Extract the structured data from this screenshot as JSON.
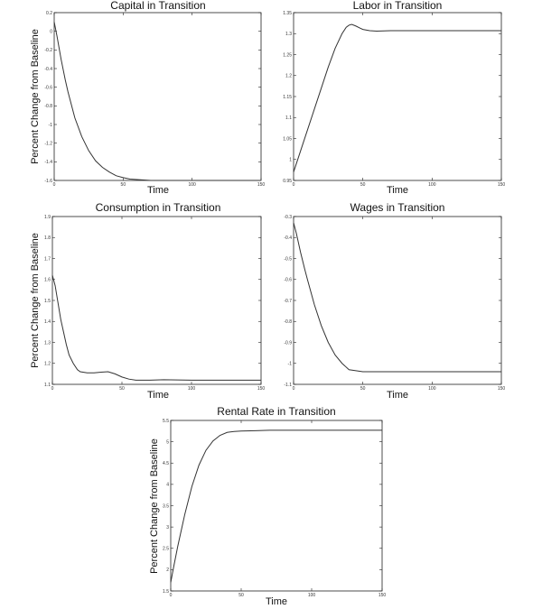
{
  "chart_data": [
    {
      "type": "line",
      "title": "Capital in Transition",
      "xlabel": "Time",
      "ylabel": "Percent Change from Baseline",
      "xlim": [
        0,
        150
      ],
      "ylim": [
        -1.6,
        0.2
      ],
      "xticks": [
        "0",
        "50",
        "100",
        "150"
      ],
      "yticks": [
        "0.2",
        "0",
        "-0.2",
        "-0.4",
        "-0.6",
        "-0.8",
        "-1",
        "-1.2",
        "-1.4",
        "-1.6"
      ],
      "grid": false,
      "series": [
        {
          "x": [
            0,
            2,
            5,
            8,
            10,
            15,
            20,
            25,
            30,
            35,
            40,
            45,
            50,
            55,
            60,
            70,
            80,
            100,
            120,
            150
          ],
          "y": [
            0.1,
            -0.05,
            -0.3,
            -0.52,
            -0.65,
            -0.93,
            -1.13,
            -1.28,
            -1.39,
            -1.46,
            -1.51,
            -1.55,
            -1.57,
            -1.585,
            -1.59,
            -1.6,
            -1.6,
            -1.6,
            -1.6,
            -1.6
          ]
        }
      ]
    },
    {
      "type": "line",
      "title": "Labor in Transition",
      "xlabel": "Time",
      "ylabel": "",
      "xlim": [
        0,
        150
      ],
      "ylim": [
        0.95,
        1.35
      ],
      "xticks": [
        "0",
        "50",
        "100",
        "150"
      ],
      "yticks": [
        "1.35",
        "1.3",
        "1.25",
        "1.2",
        "1.15",
        "1.1",
        "1.05",
        "1",
        "0.95"
      ],
      "grid": false,
      "series": [
        {
          "x": [
            0,
            5,
            10,
            15,
            20,
            25,
            30,
            35,
            38,
            40,
            42,
            45,
            48,
            50,
            55,
            60,
            70,
            100,
            150
          ],
          "y": [
            0.97,
            1.02,
            1.07,
            1.12,
            1.17,
            1.22,
            1.265,
            1.3,
            1.315,
            1.32,
            1.322,
            1.318,
            1.313,
            1.31,
            1.307,
            1.306,
            1.307,
            1.307,
            1.307
          ]
        }
      ]
    },
    {
      "type": "line",
      "title": "Consumption in Transition",
      "xlabel": "Time",
      "ylabel": "Percent Change from Baseline",
      "xlim": [
        0,
        150
      ],
      "ylim": [
        1.1,
        1.9
      ],
      "xticks": [
        "0",
        "50",
        "100",
        "150"
      ],
      "yticks": [
        "1.9",
        "1.8",
        "1.7",
        "1.6",
        "1.5",
        "1.4",
        "1.3",
        "1.2",
        "1.1"
      ],
      "grid": false,
      "series": [
        {
          "x": [
            0,
            2,
            4,
            6,
            8,
            10,
            12,
            15,
            18,
            20,
            25,
            30,
            35,
            40,
            45,
            50,
            55,
            60,
            70,
            80,
            100,
            150
          ],
          "y": [
            1.62,
            1.57,
            1.49,
            1.41,
            1.35,
            1.29,
            1.24,
            1.2,
            1.17,
            1.16,
            1.155,
            1.155,
            1.158,
            1.16,
            1.15,
            1.135,
            1.125,
            1.12,
            1.12,
            1.122,
            1.12,
            1.12
          ]
        }
      ]
    },
    {
      "type": "line",
      "title": "Wages in Transition",
      "xlabel": "Time",
      "ylabel": "",
      "xlim": [
        0,
        150
      ],
      "ylim": [
        -1.1,
        -0.3
      ],
      "xticks": [
        "0",
        "50",
        "100",
        "150"
      ],
      "yticks": [
        "-0.3",
        "-0.4",
        "-0.5",
        "-0.6",
        "-0.7",
        "-0.8",
        "-0.9",
        "-1",
        "-1.1"
      ],
      "grid": false,
      "series": [
        {
          "x": [
            0,
            2,
            5,
            8,
            10,
            15,
            20,
            25,
            30,
            35,
            40,
            45,
            50,
            60,
            80,
            100,
            150
          ],
          "y": [
            -0.33,
            -0.38,
            -0.47,
            -0.55,
            -0.6,
            -0.72,
            -0.82,
            -0.9,
            -0.96,
            -1.0,
            -1.03,
            -1.035,
            -1.04,
            -1.04,
            -1.04,
            -1.04,
            -1.04
          ]
        }
      ]
    },
    {
      "type": "line",
      "title": "Rental Rate in Transition",
      "xlabel": "Time",
      "ylabel": "Percent Change from Baseline",
      "xlim": [
        0,
        150
      ],
      "ylim": [
        1.5,
        5.5
      ],
      "xticks": [
        "0",
        "50",
        "100",
        "150"
      ],
      "yticks": [
        "5.5",
        "5",
        "4.5",
        "4",
        "3.5",
        "3",
        "2.5",
        "2",
        "1.5"
      ],
      "grid": false,
      "series": [
        {
          "x": [
            0,
            2,
            5,
            8,
            10,
            15,
            20,
            25,
            30,
            35,
            40,
            45,
            50,
            60,
            70,
            80,
            100,
            150
          ],
          "y": [
            1.7,
            2.05,
            2.55,
            3.0,
            3.3,
            3.95,
            4.45,
            4.8,
            5.02,
            5.15,
            5.22,
            5.24,
            5.25,
            5.26,
            5.27,
            5.27,
            5.27,
            5.27
          ]
        }
      ]
    }
  ]
}
